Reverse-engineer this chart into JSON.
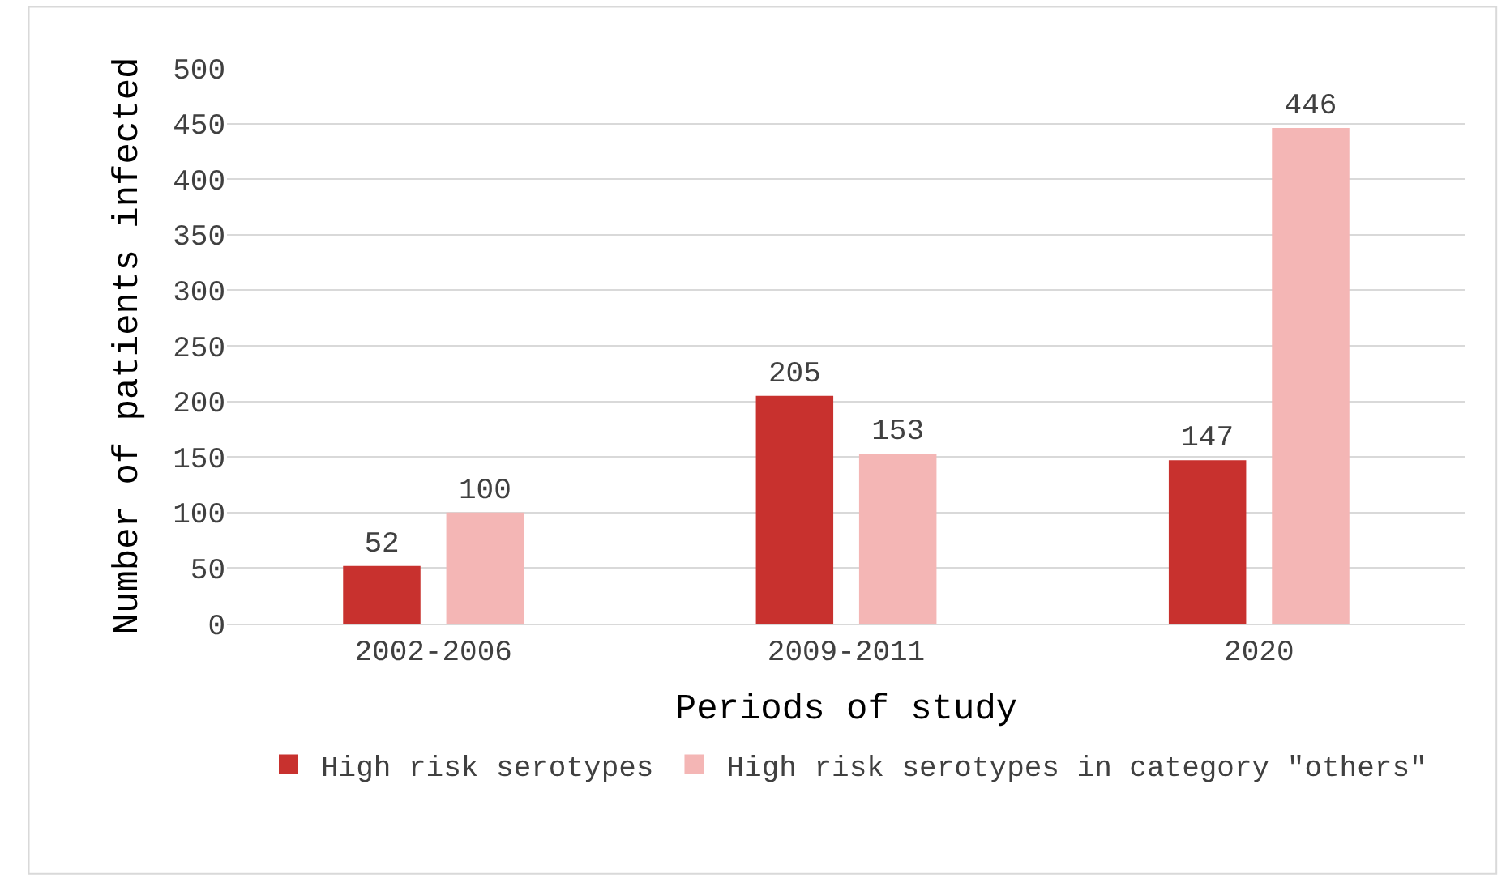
{
  "chart_data": {
    "type": "bar",
    "xlabel": "Periods of study",
    "ylabel": "Number of patients infected",
    "categories": [
      "2002-2006",
      "2009-2011",
      "2020"
    ],
    "series": [
      {
        "name": "High risk serotypes",
        "color": "#c8312e",
        "values": [
          52,
          205,
          147
        ]
      },
      {
        "name": "High risk serotypes in category \"others\"",
        "color": "#f4b6b5",
        "values": [
          100,
          153,
          446
        ]
      }
    ],
    "ylim": [
      0,
      500
    ],
    "yticks": [
      0,
      50,
      100,
      150,
      200,
      250,
      300,
      350,
      400,
      450,
      500
    ],
    "grid": "y",
    "legend": "bottom",
    "data_labels": true
  }
}
